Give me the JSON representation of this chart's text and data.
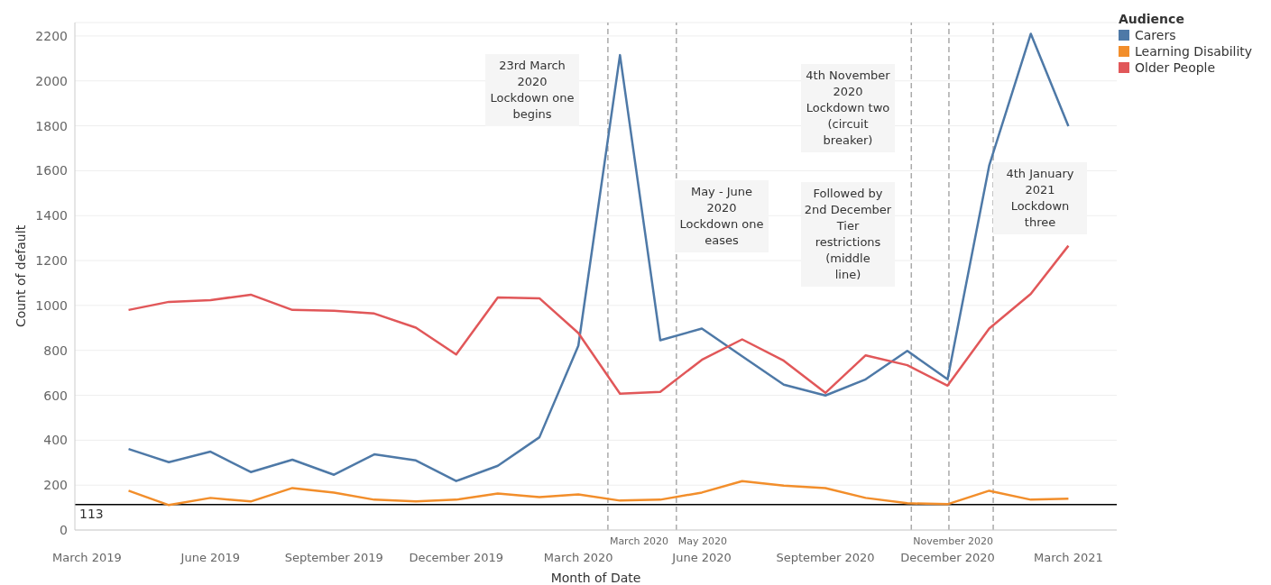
{
  "chart_data": {
    "type": "line",
    "xlabel": "Month of Date",
    "ylabel": "Count of default",
    "legend_title": "Audience",
    "x": [
      "2019-04",
      "2019-05",
      "2019-06",
      "2019-07",
      "2019-08",
      "2019-09",
      "2019-10",
      "2019-11",
      "2019-12",
      "2020-01",
      "2020-02",
      "2020-03",
      "2020-04",
      "2020-05",
      "2020-06",
      "2020-07",
      "2020-08",
      "2020-09",
      "2020-10",
      "2020-11",
      "2020-12",
      "2021-01",
      "2021-02",
      "2021-03"
    ],
    "series": [
      {
        "name": "Carers",
        "color": "#4e79a7",
        "values": [
          361,
          302,
          349,
          258,
          313,
          246,
          337,
          310,
          218,
          286,
          413,
          821,
          2115,
          845,
          897,
          774,
          647,
          599,
          671,
          798,
          671,
          1623,
          2210,
          1798
        ]
      },
      {
        "name": "Learning Disability",
        "color": "#f28e2b",
        "values": [
          175,
          111,
          143,
          127,
          187,
          167,
          135,
          127,
          135,
          163,
          147,
          159,
          131,
          135,
          167,
          218,
          198,
          187,
          143,
          119,
          115,
          175,
          135,
          139
        ]
      },
      {
        "name": "Older People",
        "color": "#e15759",
        "values": [
          980,
          1016,
          1024,
          1048,
          980,
          976,
          964,
          901,
          782,
          1036,
          1032,
          877,
          607,
          615,
          758,
          849,
          754,
          611,
          778,
          734,
          643,
          897,
          1052,
          1266
        ]
      }
    ],
    "xlim": [
      "2019-02-20",
      "2021-04-06"
    ],
    "xticks": [
      {
        "value": "2019-03",
        "label": "March 2019"
      },
      {
        "value": "2019-06",
        "label": "June 2019"
      },
      {
        "value": "2019-09",
        "label": "September 2019"
      },
      {
        "value": "2019-12",
        "label": "December 2019"
      },
      {
        "value": "2020-03",
        "label": "March 2020"
      },
      {
        "value": "2020-06",
        "label": "June 2020"
      },
      {
        "value": "2020-09",
        "label": "September 2020"
      },
      {
        "value": "2020-12",
        "label": "December 2020"
      },
      {
        "value": "2021-03",
        "label": "March 2021"
      }
    ],
    "ylim": [
      0,
      2260
    ],
    "yticks": [
      0,
      200,
      400,
      600,
      800,
      1000,
      1200,
      1400,
      1600,
      1800,
      2000,
      2200
    ],
    "ref_lines": [
      {
        "axis": "y",
        "value": 113,
        "label": "113",
        "color": "#000000",
        "line_style": "solid"
      },
      {
        "axis": "x",
        "value": "2020-03-23",
        "label": "March 2020",
        "color": "#aaaaaa",
        "line_style": "dashed"
      },
      {
        "axis": "x",
        "value": "2020-05-13",
        "label": "May 2020",
        "color": "#aaaaaa",
        "line_style": "dashed"
      },
      {
        "axis": "x",
        "value": "2020-11-04",
        "label": "November 2020",
        "color": "#aaaaaa",
        "line_style": "dashed"
      },
      {
        "axis": "x",
        "value": "2020-12-02",
        "label": null,
        "color": "#aaaaaa",
        "line_style": "dashed"
      },
      {
        "axis": "x",
        "value": "2021-01-04",
        "label": null,
        "color": "#aaaaaa",
        "line_style": "dashed"
      }
    ],
    "annotations": [
      "23rd March 2020 Lockdown one begins",
      "May - June 2020 Lockdown one eases",
      "4th November 2020 Lockdown two (circuit breaker)",
      "Followed by 2nd December Tier restrictions (middle line)",
      "4th January 2021 Lockdown three"
    ],
    "grid": "y",
    "legend": "top right",
    "line_style": "solid",
    "marker": "none"
  }
}
